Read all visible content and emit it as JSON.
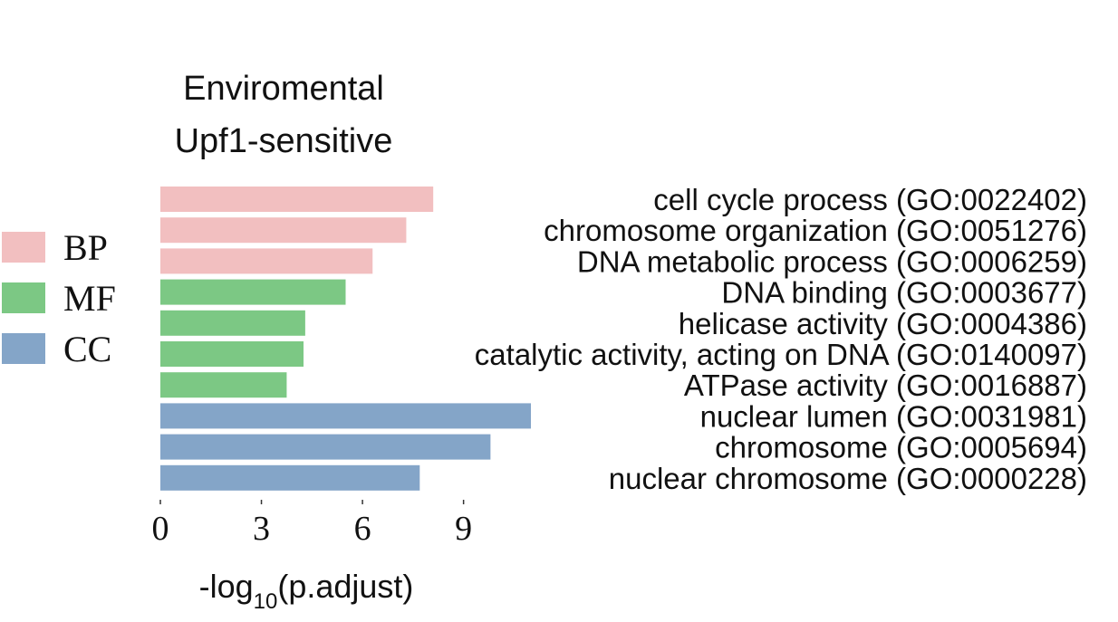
{
  "chart_data": {
    "type": "bar",
    "orientation": "horizontal",
    "title_lines": [
      "Enviromental",
      "Upf1-sensitive"
    ],
    "xlabel": {
      "prefix": "-log",
      "subscript": "10",
      "suffix": "(p.adjust)"
    },
    "ylabel": "",
    "xlim": [
      0,
      11
    ],
    "xticks": [
      0,
      3,
      6,
      9
    ],
    "grid": false,
    "legend_position": "left",
    "legend": [
      {
        "name": "BP",
        "color": "#f2bfc0"
      },
      {
        "name": "MF",
        "color": "#7cc884"
      },
      {
        "name": "CC",
        "color": "#84a5c8"
      }
    ],
    "categories": [
      "cell cycle process (GO:0022402)",
      "chromosome organization (GO:0051276)",
      "DNA metabolic process (GO:0006259)",
      "DNA binding (GO:0003677)",
      "helicase activity (GO:0004386)",
      "catalytic activity, acting on DNA (GO:0140097)",
      "ATPase activity (GO:0016887)",
      "nuclear lumen (GO:0031981)",
      "chromosome (GO:0005694)",
      "nuclear chromosome (GO:0000228)"
    ],
    "values": [
      8.1,
      7.3,
      6.3,
      5.5,
      4.3,
      4.25,
      3.75,
      11.0,
      9.8,
      7.7
    ],
    "groups": [
      "BP",
      "BP",
      "BP",
      "MF",
      "MF",
      "MF",
      "MF",
      "CC",
      "CC",
      "CC"
    ]
  }
}
